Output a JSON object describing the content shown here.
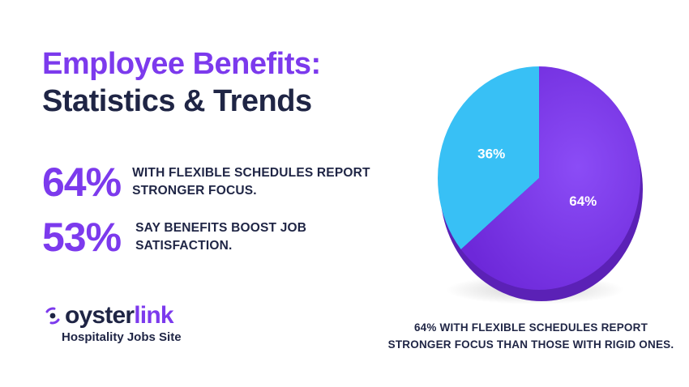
{
  "title": {
    "line1": "Employee Benefits:",
    "line2": "Statistics & Trends"
  },
  "stats": [
    {
      "value": "64%",
      "text": "WITH FLEXIBLE SCHEDULES REPORT STRONGER FOCUS."
    },
    {
      "value": "53%",
      "text": "SAY BENEFITS BOOST JOB SATISFACTION."
    }
  ],
  "brand": {
    "name_part1": "oyster",
    "name_part2": "link",
    "tagline": "Hospitality Jobs Site",
    "logo_icon": "oysterlink-logo-icon"
  },
  "colors": {
    "purple": "#7c3aed",
    "blue": "#38bdf8",
    "navy": "#1f2545"
  },
  "chart_data": {
    "type": "pie",
    "slices": [
      {
        "label": "36%",
        "value": 36,
        "color": "#38c0f5"
      },
      {
        "label": "64%",
        "value": 64,
        "color": "#7c3aed"
      }
    ],
    "caption": "64% WITH FLEXIBLE SCHEDULES REPORT STRONGER FOCUS THAN THOSE WITH RIGID ONES."
  }
}
